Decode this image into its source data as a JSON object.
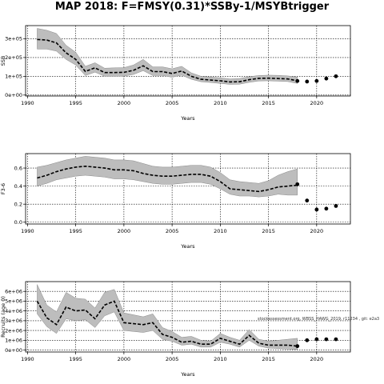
{
  "figure": {
    "title": "MAP 2018: F=FMSY(0.31)*SSBy-1/MSYBtrigger"
  },
  "chart_data": [
    {
      "type": "line",
      "ylabel": "SSB",
      "xlabel": "Years",
      "xlim": [
        1989.8,
        2023.5
      ],
      "ylim": [
        -5000,
        370000
      ],
      "xticks": [
        1990,
        1995,
        2000,
        2005,
        2010,
        2015,
        2020
      ],
      "yticks": [
        0,
        100000,
        200000,
        300000
      ],
      "ytick_labels": [
        "0e+00",
        "1e+05",
        "2e+05",
        "3e+05"
      ],
      "grid": true,
      "series": [
        {
          "role": "median",
          "x": [
            1991,
            1992,
            1993,
            1994,
            1995,
            1996,
            1997,
            1998,
            1999,
            2000,
            2001,
            2002,
            2003,
            2004,
            2005,
            2006,
            2007,
            2008,
            2009,
            2010,
            2011,
            2012,
            2013,
            2014,
            2015,
            2016,
            2017,
            2018
          ],
          "values": [
            296000,
            293000,
            278000,
            225000,
            190000,
            126000,
            145000,
            120000,
            120000,
            121000,
            132000,
            156000,
            125000,
            125000,
            115000,
            128000,
            100000,
            84000,
            80000,
            76000,
            70000,
            71000,
            82000,
            89000,
            90000,
            88000,
            86000,
            76000
          ]
        },
        {
          "role": "upper",
          "x": [
            1991,
            1992,
            1993,
            1994,
            1995,
            1996,
            1997,
            1998,
            1999,
            2000,
            2001,
            2002,
            2003,
            2004,
            2005,
            2006,
            2007,
            2008,
            2009,
            2010,
            2011,
            2012,
            2013,
            2014,
            2015,
            2016,
            2017,
            2018
          ],
          "values": [
            355000,
            345000,
            328000,
            265000,
            228000,
            153000,
            172000,
            143000,
            145000,
            146000,
            160000,
            190000,
            150000,
            150000,
            140000,
            153000,
            118000,
            100000,
            96000,
            92000,
            86000,
            88000,
            98000,
            104000,
            106000,
            105000,
            102000,
            96000
          ]
        },
        {
          "role": "lower",
          "x": [
            1991,
            1992,
            1993,
            1994,
            1995,
            1996,
            1997,
            1998,
            1999,
            2000,
            2001,
            2002,
            2003,
            2004,
            2005,
            2006,
            2007,
            2008,
            2009,
            2010,
            2011,
            2012,
            2013,
            2014,
            2015,
            2016,
            2017,
            2018
          ],
          "values": [
            245000,
            245000,
            234000,
            190000,
            160000,
            104000,
            122000,
            100000,
            100000,
            101000,
            110000,
            130000,
            104000,
            104000,
            95000,
            106000,
            84000,
            71000,
            67000,
            62000,
            57000,
            58000,
            68000,
            75000,
            76000,
            74000,
            72000,
            62000
          ]
        },
        {
          "role": "projection",
          "x": [
            2018,
            2019,
            2020,
            2021,
            2022
          ],
          "values": [
            75000,
            72000,
            75000,
            88000,
            100000
          ]
        }
      ]
    },
    {
      "type": "line",
      "ylabel": "F3-6",
      "xlabel": "Years",
      "xlim": [
        1989.8,
        2023.5
      ],
      "ylim": [
        -0.02,
        0.76
      ],
      "xticks": [
        1990,
        1995,
        2000,
        2005,
        2010,
        2015,
        2020
      ],
      "yticks": [
        0.0,
        0.2,
        0.4,
        0.6
      ],
      "ytick_labels": [
        "0.0",
        "0.2",
        "0.4",
        "0.6"
      ],
      "grid": true,
      "series": [
        {
          "role": "median",
          "x": [
            1991,
            1992,
            1993,
            1994,
            1995,
            1996,
            1997,
            1998,
            1999,
            2000,
            2001,
            2002,
            2003,
            2004,
            2005,
            2006,
            2007,
            2008,
            2009,
            2010,
            2011,
            2012,
            2013,
            2014,
            2015,
            2016,
            2017,
            2018
          ],
          "values": [
            0.49,
            0.52,
            0.56,
            0.59,
            0.61,
            0.62,
            0.61,
            0.6,
            0.58,
            0.58,
            0.57,
            0.54,
            0.52,
            0.51,
            0.51,
            0.52,
            0.53,
            0.53,
            0.51,
            0.45,
            0.37,
            0.36,
            0.35,
            0.34,
            0.36,
            0.39,
            0.4,
            0.41
          ]
        },
        {
          "role": "upper",
          "x": [
            1991,
            1992,
            1993,
            1994,
            1995,
            1996,
            1997,
            1998,
            1999,
            2000,
            2001,
            2002,
            2003,
            2004,
            2005,
            2006,
            2007,
            2008,
            2009,
            2010,
            2011,
            2012,
            2013,
            2014,
            2015,
            2016,
            2017,
            2018
          ],
          "values": [
            0.61,
            0.63,
            0.66,
            0.69,
            0.71,
            0.73,
            0.72,
            0.71,
            0.69,
            0.69,
            0.68,
            0.65,
            0.62,
            0.61,
            0.61,
            0.62,
            0.63,
            0.63,
            0.61,
            0.55,
            0.47,
            0.45,
            0.44,
            0.43,
            0.46,
            0.52,
            0.56,
            0.59
          ]
        },
        {
          "role": "lower",
          "x": [
            1991,
            1992,
            1993,
            1994,
            1995,
            1996,
            1997,
            1998,
            1999,
            2000,
            2001,
            2002,
            2003,
            2004,
            2005,
            2006,
            2007,
            2008,
            2009,
            2010,
            2011,
            2012,
            2013,
            2014,
            2015,
            2016,
            2017,
            2018
          ],
          "values": [
            0.4,
            0.43,
            0.47,
            0.49,
            0.51,
            0.52,
            0.51,
            0.5,
            0.48,
            0.48,
            0.47,
            0.45,
            0.43,
            0.42,
            0.42,
            0.43,
            0.44,
            0.44,
            0.42,
            0.37,
            0.31,
            0.29,
            0.29,
            0.28,
            0.29,
            0.31,
            0.3,
            0.3
          ]
        },
        {
          "role": "projection",
          "x": [
            2018,
            2019,
            2020,
            2021,
            2022
          ],
          "values": [
            0.42,
            0.24,
            0.14,
            0.15,
            0.18
          ]
        }
      ]
    },
    {
      "type": "line",
      "ylabel": "Recruits (age 0)",
      "xlabel": "Years",
      "xlim": [
        1989.8,
        2023.5
      ],
      "ylim": [
        -200000,
        7000000
      ],
      "xticks": [
        1990,
        1995,
        2000,
        2005,
        2010,
        2015,
        2020
      ],
      "yticks": [
        0,
        1000000,
        2000000,
        3000000,
        4000000,
        5000000,
        6000000
      ],
      "ytick_labels": [
        "0e+00",
        "1e+06",
        "2e+06",
        "3e+06",
        "4e+06",
        "5e+06",
        "6e+06"
      ],
      "grid": true,
      "annotation": "stockassessment.org, WBSS_HAWG_2019, r11234 , git: e2a3",
      "series": [
        {
          "role": "median",
          "x": [
            1991,
            1992,
            1993,
            1994,
            1995,
            1996,
            1997,
            1998,
            1999,
            2000,
            2001,
            2002,
            2003,
            2004,
            2005,
            2006,
            2007,
            2008,
            2009,
            2010,
            2011,
            2012,
            2013,
            2014,
            2015,
            2016,
            2017,
            2018
          ],
          "values": [
            5000000,
            3300000,
            2600000,
            4400000,
            4000000,
            4100000,
            3200000,
            4600000,
            5000000,
            2800000,
            2700000,
            2600000,
            2800000,
            1600000,
            1300000,
            800000,
            900000,
            600000,
            600000,
            1200000,
            900000,
            600000,
            1500000,
            700000,
            500000,
            500000,
            500000,
            400000
          ]
        },
        {
          "role": "upper",
          "x": [
            1991,
            1992,
            1993,
            1994,
            1995,
            1996,
            1997,
            1998,
            1999,
            2000,
            2001,
            2002,
            2003,
            2004,
            2005,
            2006,
            2007,
            2008,
            2009,
            2010,
            2011,
            2012,
            2013,
            2014,
            2015,
            2016,
            2017,
            2018
          ],
          "values": [
            6700000,
            4600000,
            3900000,
            5900000,
            5300000,
            5200000,
            4300000,
            5900000,
            6200000,
            3800000,
            3600000,
            3400000,
            3700000,
            2300000,
            1900000,
            1300000,
            1400000,
            1000000,
            900000,
            1700000,
            1300000,
            1000000,
            2100000,
            1100000,
            900000,
            1000000,
            1100000,
            1200000
          ]
        },
        {
          "role": "lower",
          "x": [
            1991,
            1992,
            1993,
            1994,
            1995,
            1996,
            1997,
            1998,
            1999,
            2000,
            2001,
            2002,
            2003,
            2004,
            2005,
            2006,
            2007,
            2008,
            2009,
            2010,
            2011,
            2012,
            2013,
            2014,
            2015,
            2016,
            2017,
            2018
          ],
          "values": [
            3700000,
            2400000,
            1700000,
            3200000,
            3000000,
            3100000,
            2300000,
            3500000,
            3900000,
            2000000,
            1900000,
            1800000,
            2000000,
            1100000,
            900000,
            500000,
            600000,
            300000,
            300000,
            800000,
            600000,
            300000,
            1000000,
            400000,
            200000,
            150000,
            100000,
            50000
          ]
        },
        {
          "role": "projection",
          "x": [
            2018,
            2019,
            2020,
            2021,
            2022
          ],
          "values": [
            400000,
            1000000,
            1100000,
            1100000,
            1100000
          ]
        }
      ]
    }
  ]
}
